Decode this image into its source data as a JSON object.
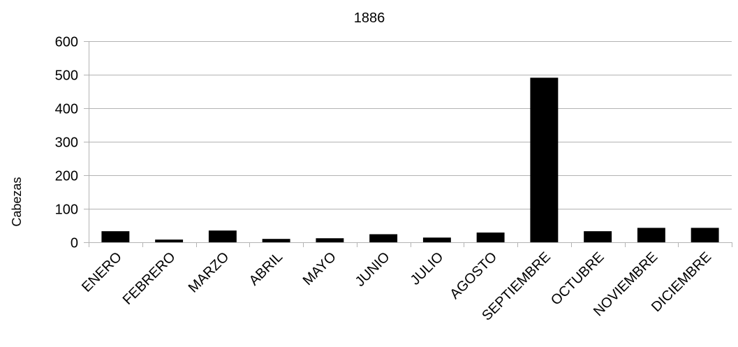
{
  "chart_data": {
    "type": "bar",
    "title": "1886",
    "xlabel": "",
    "ylabel": "Cabezas",
    "ylim": [
      0,
      600
    ],
    "yticks": [
      0,
      100,
      200,
      300,
      400,
      500,
      600
    ],
    "grid": true,
    "legend": "none",
    "bar_color": "#000000",
    "grid_color": "#b3b3b3",
    "categories": [
      "ENERO",
      "FEBRERO",
      "MARZO",
      "ABRIL",
      "MAYO",
      "JUNIO",
      "JULIO",
      "AGOSTO",
      "SEPTIEMBRE",
      "OCTUBRE",
      "NOVIEMBRE",
      "DICIEMBRE"
    ],
    "values": [
      33,
      8,
      35,
      10,
      12,
      24,
      14,
      29,
      491,
      33,
      43,
      43
    ]
  }
}
